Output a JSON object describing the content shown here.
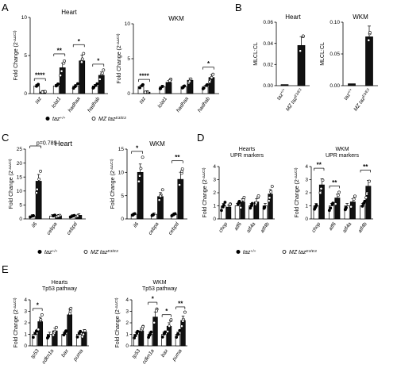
{
  "panel_letters": [
    "A",
    "B",
    "C",
    "D",
    "E"
  ],
  "legend": {
    "control_label": "taz",
    "control_sup": "+/+",
    "mutant_label": "MZ taz",
    "mutant_sup": "E3/E3"
  },
  "y_label_fold": "Fold Change (2",
  "y_label_fold_sup": "-ΔΔCt",
  "chart_data": [
    {
      "panel": "A",
      "title": "Heart",
      "type": "bar",
      "categories": [
        "taz",
        "lclat1",
        "hadhaa",
        "hadhab"
      ],
      "ylim": [
        0,
        10
      ],
      "yticks": [
        0,
        5,
        10
      ],
      "series": [
        {
          "name": "taz+/+",
          "values": [
            1.0,
            1.0,
            1.0,
            1.0
          ]
        },
        {
          "name": "MZ tazE3/E3",
          "values": [
            0.2,
            3.4,
            4.3,
            2.4
          ]
        }
      ],
      "significance": [
        "****",
        "**",
        "*",
        "*"
      ]
    },
    {
      "panel": "A",
      "title": "WKM",
      "type": "bar",
      "categories": [
        "taz",
        "lclat1",
        "hadhaa",
        "hadhab"
      ],
      "ylim": [
        0,
        10
      ],
      "yticks": [
        0,
        5,
        10
      ],
      "series": [
        {
          "name": "taz+/+",
          "values": [
            1.0,
            1.0,
            1.0,
            1.0
          ]
        },
        {
          "name": "MZ tazE3/E3",
          "values": [
            0.2,
            1.6,
            1.9,
            2.3
          ]
        }
      ],
      "significance": [
        "****",
        "",
        "",
        "*"
      ]
    },
    {
      "panel": "B",
      "title": "Heart",
      "type": "bar",
      "categories": [
        "taz+/+",
        "MZ tazE3/E3"
      ],
      "ylabel": "MLCL:CL",
      "ylim": [
        0,
        0.06
      ],
      "yticks": [
        "0.00",
        "0.02",
        "0.04",
        "0.06"
      ],
      "values": [
        0.001,
        0.038
      ]
    },
    {
      "panel": "B",
      "title": "WKM",
      "type": "bar",
      "categories": [
        "taz+/+",
        "MZ tazE3/E3"
      ],
      "ylabel": "MLCL:CL",
      "ylim": [
        0,
        0.1
      ],
      "yticks": [
        "0.00",
        "0.05",
        "0.10"
      ],
      "values": [
        0.003,
        0.077
      ]
    },
    {
      "panel": "C",
      "title": "Heart",
      "type": "bar",
      "categories": [
        "il6",
        "cebpa",
        "cebpd"
      ],
      "ylim": [
        0,
        25
      ],
      "yticks": [
        0,
        5,
        10,
        15,
        20,
        25
      ],
      "series": [
        {
          "name": "taz+/+",
          "values": [
            1.0,
            1.0,
            1.0
          ]
        },
        {
          "name": "MZ tazE3/E3",
          "values": [
            13.5,
            1.1,
            1.3
          ]
        }
      ],
      "significance": [
        "p=0.789",
        "",
        ""
      ]
    },
    {
      "panel": "C",
      "title": "WKM",
      "type": "bar",
      "categories": [
        "il6",
        "cebpa",
        "cebpd"
      ],
      "ylim": [
        0,
        15
      ],
      "yticks": [
        0,
        5,
        10,
        15
      ],
      "series": [
        {
          "name": "taz+/+",
          "values": [
            1.0,
            1.0,
            1.0
          ]
        },
        {
          "name": "MZ tazE3/E3",
          "values": [
            10.0,
            4.8,
            8.5
          ]
        }
      ],
      "significance": [
        "*",
        "",
        "**"
      ]
    },
    {
      "panel": "D",
      "title": "Hearts",
      "subtitle": "UPR markers",
      "type": "bar",
      "categories": [
        "chop",
        "atf6",
        "atf4a",
        "atf4b"
      ],
      "ylim": [
        0,
        4
      ],
      "yticks": [
        0,
        1,
        2,
        3,
        4
      ],
      "series": [
        {
          "name": "taz+/+",
          "values": [
            1.0,
            1.0,
            1.0,
            1.0
          ]
        },
        {
          "name": "MZ tazE3/E3",
          "values": [
            0.9,
            1.3,
            1.3,
            1.9
          ]
        }
      ],
      "significance": [
        "",
        "",
        "",
        ""
      ]
    },
    {
      "panel": "D",
      "title": "WKM",
      "subtitle": "UPR markers",
      "type": "bar",
      "categories": [
        "chop",
        "atf6",
        "atf4a",
        "atf4b"
      ],
      "ylim": [
        0,
        4
      ],
      "yticks": [
        0,
        1,
        2,
        3,
        4
      ],
      "series": [
        {
          "name": "taz+/+",
          "values": [
            1.0,
            1.0,
            1.0,
            1.0
          ]
        },
        {
          "name": "MZ tazE3/E3",
          "values": [
            2.6,
            1.6,
            1.3,
            2.5
          ]
        }
      ],
      "significance": [
        "**",
        "**",
        "",
        "**"
      ]
    },
    {
      "panel": "E",
      "title": "Hearts",
      "subtitle": "Tp53 pathway",
      "type": "bar",
      "categories": [
        "tp53",
        "cdkn1a",
        "bax",
        "puma"
      ],
      "ylim": [
        0,
        4
      ],
      "yticks": [
        0,
        1,
        2,
        3,
        4
      ],
      "series": [
        {
          "name": "taz+/+",
          "values": [
            1.0,
            1.0,
            1.0,
            1.0
          ]
        },
        {
          "name": "MZ tazE3/E3",
          "values": [
            2.1,
            1.3,
            2.7,
            1.2
          ]
        }
      ],
      "significance": [
        "*",
        "",
        "",
        ""
      ]
    },
    {
      "panel": "E",
      "title": "WKM",
      "subtitle": "Tp53 pathway",
      "type": "bar",
      "categories": [
        "tp53",
        "cdkn1a",
        "bax",
        "puma"
      ],
      "ylim": [
        0,
        4
      ],
      "yticks": [
        0,
        1,
        2,
        3,
        4
      ],
      "series": [
        {
          "name": "taz+/+",
          "values": [
            1.0,
            1.0,
            1.0,
            1.0
          ]
        },
        {
          "name": "MZ tazE3/E3",
          "values": [
            1.3,
            2.5,
            1.7,
            2.2
          ]
        }
      ],
      "significance": [
        "",
        "*",
        "*",
        "**"
      ]
    }
  ]
}
